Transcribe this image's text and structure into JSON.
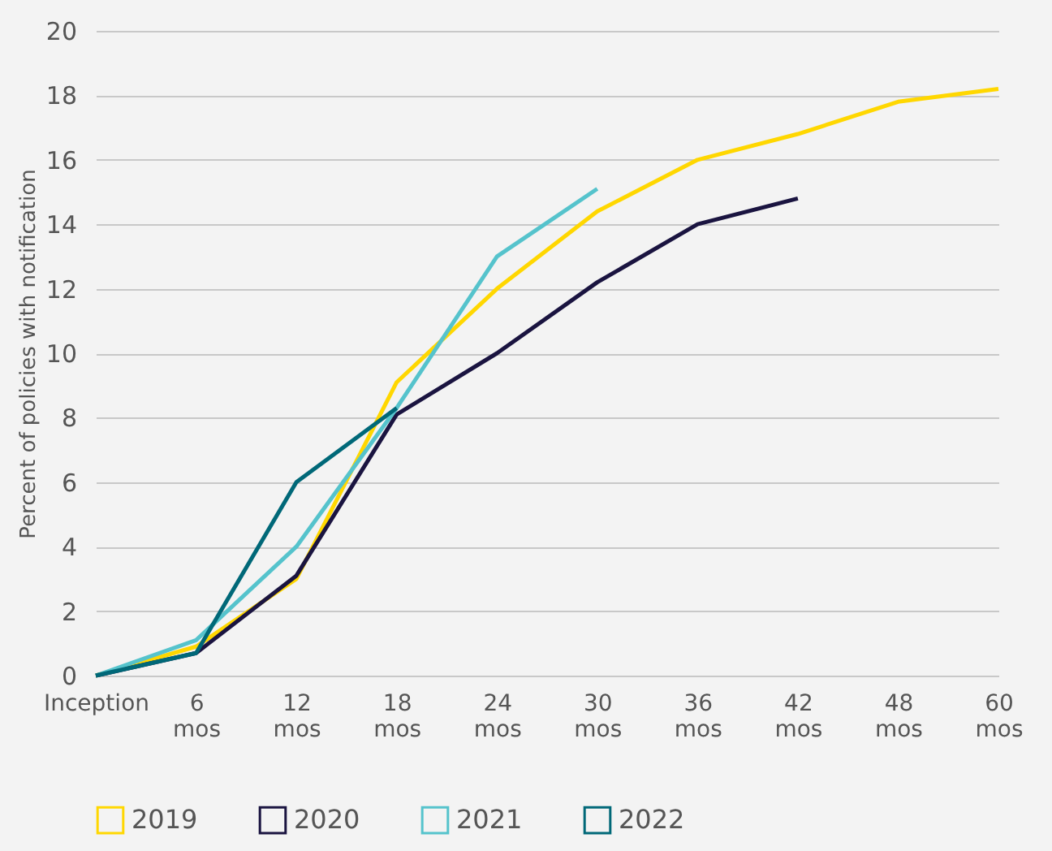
{
  "chart_data": {
    "type": "line",
    "ylabel": "Percent of policies with notification",
    "categories": [
      "Inception",
      "6 mos",
      "12 mos",
      "18 mos",
      "24 mos",
      "30 mos",
      "36 mos",
      "42 mos",
      "48 mos",
      "60 mos"
    ],
    "series": [
      {
        "name": "2019",
        "color": "#ffd700",
        "values": [
          0,
          0.9,
          3.0,
          9.1,
          12.0,
          14.4,
          16.0,
          16.8,
          17.8,
          18.2
        ]
      },
      {
        "name": "2020",
        "color": "#1a1440",
        "values": [
          0,
          0.7,
          3.1,
          8.1,
          10.0,
          12.2,
          14.0,
          14.8,
          null,
          null
        ]
      },
      {
        "name": "2021",
        "color": "#55c3cc",
        "values": [
          0,
          1.1,
          4.0,
          8.3,
          13.0,
          15.1,
          null,
          null,
          null,
          null
        ]
      },
      {
        "name": "2022",
        "color": "#006878",
        "values": [
          0,
          0.7,
          6.0,
          8.3,
          null,
          null,
          null,
          null,
          null,
          null
        ]
      }
    ],
    "ylim": [
      0,
      20
    ],
    "yticks": [
      0,
      2,
      4,
      6,
      8,
      10,
      12,
      14,
      16,
      18,
      20
    ],
    "grid": "y",
    "legend": "bottom",
    "marker": "none",
    "line_style": "solid"
  }
}
